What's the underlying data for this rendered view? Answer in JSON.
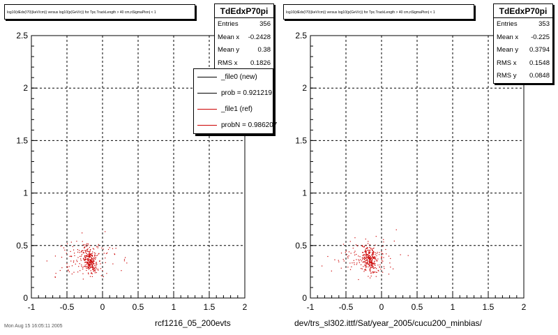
{
  "chart_data": [
    {
      "type": "scatter",
      "title": "log10(dEdx(I70)(keV/cm)) versus log10(p(GeV/c)) for Tpc.TrackLength > 40 cm,nSigmaPion| < 1",
      "xlabel": "",
      "ylabel": "",
      "xlim": [
        -1,
        2
      ],
      "ylim": [
        0,
        2.5
      ],
      "grid": true,
      "xticks": [
        "-1",
        "-0.5",
        "0",
        "0.5",
        "1",
        "1.5",
        "2"
      ],
      "yticks": [
        "0",
        "0.5",
        "1",
        "1.5",
        "2",
        "2.5"
      ],
      "series": [
        {
          "name": "_file0 (new)",
          "color": "#000000",
          "points": []
        },
        {
          "name": "_file1 (ref)",
          "color": "#cc0000",
          "points": []
        }
      ],
      "cluster": {
        "x_mean": -0.2428,
        "y_mean": 0.38,
        "x_rms": 0.1826,
        "n": 356
      },
      "stats": {
        "name": "TdEdxP70pi",
        "rows": [
          {
            "label": "Entries",
            "value": "356"
          },
          {
            "label": "Mean x",
            "value": "-0.2428"
          },
          {
            "label": "Mean y",
            "value": "0.38"
          },
          {
            "label": "RMS x",
            "value": "0.1826"
          }
        ]
      },
      "legend": [
        {
          "label": "_file0 (new)",
          "color": "#000000"
        },
        {
          "label": "prob = 0.921219",
          "color": "#000000"
        },
        {
          "label": "_file1 (ref)",
          "color": "#cc0000"
        },
        {
          "label": "probN = 0.986207",
          "color": "#cc0000"
        }
      ],
      "caption": "rcf1216_05_200evts"
    },
    {
      "type": "scatter",
      "title": "log10(dEdx(I70)(keV/cm)) versus log10(p(GeV/c)) for Tpc.TrackLength > 40 cm,nSigmaPion| < 1",
      "xlabel": "",
      "ylabel": "",
      "xlim": [
        -1,
        2
      ],
      "ylim": [
        0,
        2.5
      ],
      "grid": true,
      "xticks": [
        "-1",
        "-0.5",
        "0",
        "0.5",
        "1",
        "1.5",
        "2"
      ],
      "yticks": [
        "0",
        "0.5",
        "1",
        "1.5",
        "2",
        "2.5"
      ],
      "cluster": {
        "x_mean": -0.225,
        "y_mean": 0.3794,
        "x_rms": 0.1548,
        "n": 353
      },
      "stats": {
        "name": "TdEdxP70pi",
        "rows": [
          {
            "label": "Entries",
            "value": "353"
          },
          {
            "label": "Mean x",
            "value": "-0.225"
          },
          {
            "label": "Mean y",
            "value": "0.3794"
          },
          {
            "label": "RMS x",
            "value": "0.1548"
          },
          {
            "label": "RMS y",
            "value": "0.0848"
          }
        ]
      },
      "caption": "dev/trs_sl302.ittf/Sat/year_2005/cucu200_minbias/"
    }
  ],
  "footer_text": "Mon Aug 15 16:05:11 2005",
  "colors": {
    "points": "#cc0000",
    "frame": "#000000"
  }
}
